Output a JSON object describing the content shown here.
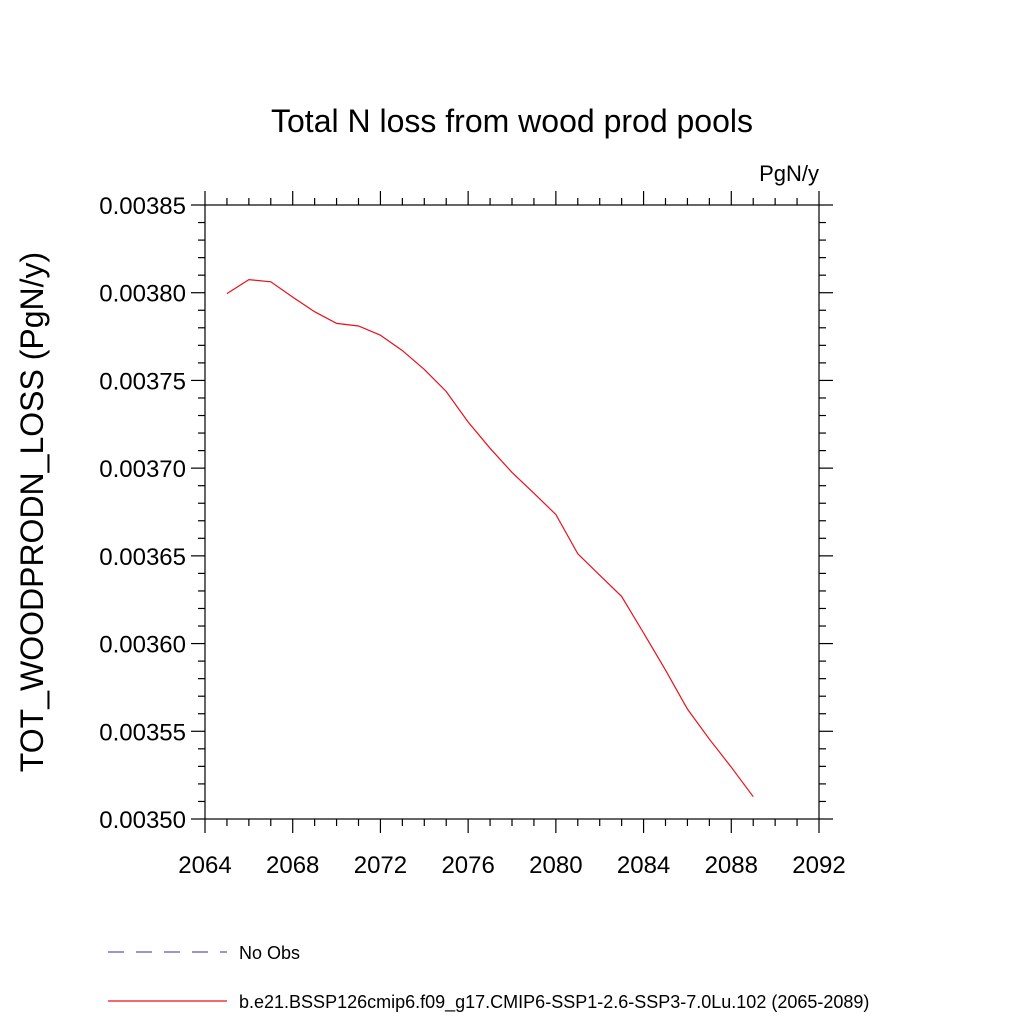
{
  "chart_data": {
    "type": "line",
    "title": "Total N loss from wood prod pools",
    "units_label": "PgN/y",
    "xlabel": "",
    "ylabel": "TOT_WOODPRODN_LOSS  (PgN/y)",
    "xlim": [
      2064,
      2092
    ],
    "ylim": [
      0.0035,
      0.00385
    ],
    "x_ticks": [
      2064,
      2068,
      2072,
      2076,
      2080,
      2084,
      2088,
      2092
    ],
    "x_tick_labels": [
      "2064",
      "2068",
      "2072",
      "2076",
      "2080",
      "2084",
      "2088",
      "2092"
    ],
    "y_ticks": [
      0.0035,
      0.00355,
      0.0036,
      0.00365,
      0.0037,
      0.00375,
      0.0038,
      0.00385
    ],
    "y_tick_labels": [
      "0.00350",
      "0.00355",
      "0.00360",
      "0.00365",
      "0.00370",
      "0.00375",
      "0.00380",
      "0.00385"
    ],
    "grid": false,
    "legend_position": "bottom",
    "series": [
      {
        "name": "No Obs",
        "color": "#6655aa",
        "style": "dashed",
        "x": [],
        "y": []
      },
      {
        "name": "b.e21.BSSP126cmip6.f09_g17.CMIP6-SSP1-2.6-SSP3-7.0Lu.102 (2065-2089)",
        "color": "#e8101a",
        "style": "solid",
        "x": [
          2065,
          2066,
          2067,
          2068,
          2069,
          2070,
          2071,
          2072,
          2073,
          2074,
          2075,
          2076,
          2077,
          2078,
          2079,
          2080,
          2081,
          2082,
          2083,
          2084,
          2085,
          2086,
          2087,
          2088,
          2089
        ],
        "y": [
          0.0037995,
          0.0038075,
          0.0038062,
          0.0037975,
          0.0037892,
          0.0037825,
          0.003781,
          0.0037758,
          0.003767,
          0.0037563,
          0.0037437,
          0.0037263,
          0.0037113,
          0.0036976,
          0.0036857,
          0.0036735,
          0.0036512,
          0.003639,
          0.0036269,
          0.003606,
          0.0035849,
          0.0035627,
          0.0035455,
          0.0035295,
          0.0035127
        ]
      }
    ]
  }
}
